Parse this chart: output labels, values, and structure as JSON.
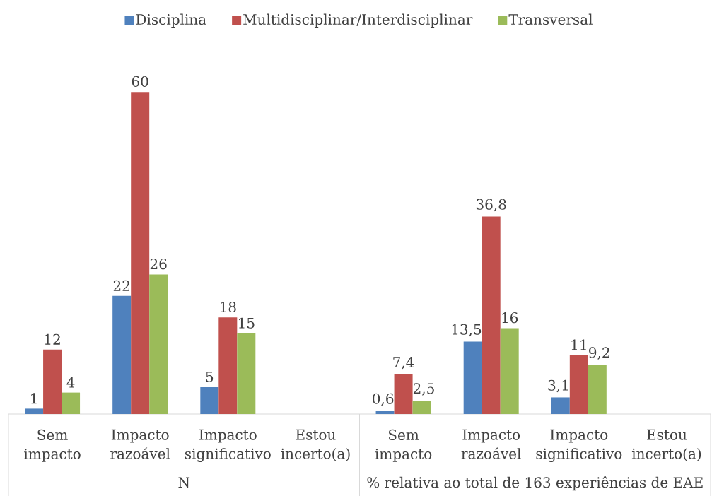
{
  "chart_data": {
    "type": "bar",
    "categories": [
      "Sem impacto",
      "Impacto razoável",
      "Impacto significativo",
      "Estou incerto(a)",
      "Sem impacto",
      "Impacto razoável",
      "Impacto significativo",
      "Estou incerto(a)"
    ],
    "series": [
      {
        "name": "Disciplina",
        "color": "#4f81bd",
        "values": [
          1,
          22,
          5,
          null,
          0.6,
          13.5,
          3.1,
          null
        ],
        "value_labels": [
          "1",
          "22",
          "5",
          null,
          "0,6",
          "13,5",
          "3,1",
          null
        ]
      },
      {
        "name": "Multidisciplinar/Interdisciplinar",
        "color": "#c0504d",
        "values": [
          12,
          60,
          18,
          null,
          7.4,
          36.8,
          11,
          null
        ],
        "value_labels": [
          "12",
          "60",
          "18",
          null,
          "7,4",
          "36,8",
          "11",
          null
        ]
      },
      {
        "name": "Transversal",
        "color": "#9bbb59",
        "values": [
          4,
          26,
          15,
          null,
          2.5,
          16,
          9.2,
          null
        ],
        "value_labels": [
          "4",
          "26",
          "15",
          null,
          "2,5",
          "16",
          "9,2",
          null
        ]
      }
    ],
    "annotations": [
      "N",
      "% relativa ao total de 163 experiências de EAE"
    ],
    "legend": "top",
    "tick_labels": "x"
  }
}
